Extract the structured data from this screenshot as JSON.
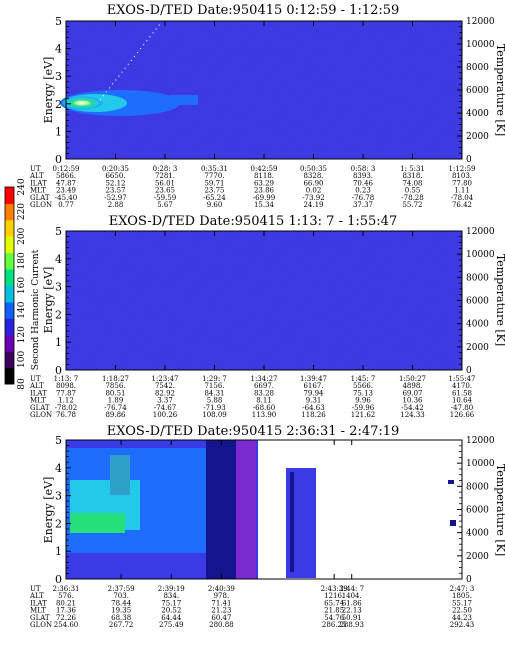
{
  "colors": {
    "plot_bg": "#3a3ae6",
    "hatch": "#6a2a9a",
    "bright_blue": "#1f6dff",
    "cyan": "#22c9e8",
    "teal": "#2fa0c8",
    "green": "#25e07a",
    "light_green": "#b8ffb0",
    "white": "#ffffff",
    "navy": "#14148c",
    "purple": "#7a2bd0"
  },
  "colorbar": {
    "label": "Second Harmonic Current",
    "ticks": [
      "80",
      "100",
      "120",
      "140",
      "160",
      "180",
      "200",
      "220",
      "240"
    ],
    "colors": [
      "#000000",
      "#3a0060",
      "#6a00b0",
      "#2a20e0",
      "#1060ff",
      "#00c0e0",
      "#00e080",
      "#60ff40",
      "#e0ff00",
      "#ffd000",
      "#ff8000",
      "#ff0000"
    ]
  },
  "chart_data": [
    {
      "type": "heatmap",
      "title": "EXOS-D/TED   Date:950415  0:12:59 - 1:12:59",
      "ylabel": "Energy [eV]",
      "y2label": "Temperature [K]",
      "ylim": [
        0,
        5
      ],
      "y2lim": [
        0,
        12000
      ],
      "y_ticks": [
        "0",
        "1",
        "2",
        "3",
        "4",
        "5"
      ],
      "y2_ticks": [
        "0",
        "2000",
        "4000",
        "6000",
        "8000",
        "10000",
        "12000"
      ],
      "table": {
        "labels": [
          "UT",
          "ALT",
          "ILAT",
          "MLT",
          "GLAT",
          "GLON"
        ],
        "columns": [
          [
            "0:12:59",
            "5866.",
            "47.87",
            "23.49",
            "-45.40",
            "0.77"
          ],
          [
            "0:20:35",
            "6650.",
            "52.12",
            "23.57",
            "-52.97",
            "2.88"
          ],
          [
            "0:28: 3",
            "7281.",
            "56.01",
            "23.65",
            "-59.59",
            "5.67"
          ],
          [
            "0:35:31",
            "7770.",
            "59.71",
            "23.75",
            "-65.24",
            "9.60"
          ],
          [
            "0:42:59",
            "8118.",
            "63.29",
            "23.86",
            "-69.99",
            "15.34"
          ],
          [
            "0:50:35",
            "8328.",
            "66.90",
            "0.02",
            "-73.92",
            "24.19"
          ],
          [
            "0:58: 3",
            "8393.",
            "70.46",
            "0.23",
            "-76.78",
            "37.37"
          ],
          [
            "1: 5:31",
            "8318.",
            "74.08",
            "0.55",
            "-78.28",
            "55.72"
          ],
          [
            "1:12:59",
            "8103.",
            "77.80",
            "1.11",
            "-78.04",
            "76.42"
          ]
        ]
      }
    },
    {
      "type": "heatmap",
      "title": "EXOS-D/TED   Date:950415  1:13: 7 - 1:55:47",
      "ylabel": "Energy [eV]",
      "y2label": "Temperature [K]",
      "ylim": [
        0,
        5
      ],
      "y2lim": [
        0,
        12000
      ],
      "y_ticks": [
        "0",
        "1",
        "2",
        "3",
        "4",
        "5"
      ],
      "y2_ticks": [
        "0",
        "2000",
        "4000",
        "6000",
        "8000",
        "10000",
        "12000"
      ],
      "table": {
        "labels": [
          "UT",
          "ALT",
          "ILAT",
          "MLT",
          "GLAT",
          "GLON"
        ],
        "columns": [
          [
            "1:13: 7",
            "8098.",
            "77.87",
            "1.12",
            "-78.02",
            "76.78"
          ],
          [
            "1:18:27",
            "7856.",
            "80.51",
            "1.89",
            "-76.74",
            "89.86"
          ],
          [
            "1:23:47",
            "7542.",
            "82.92",
            "3.37",
            "-74.67",
            "100.26"
          ],
          [
            "1:29: 7",
            "7156.",
            "84.31",
            "5.88",
            "-71.93",
            "108.09"
          ],
          [
            "1:34:27",
            "6697.",
            "83.28",
            "8.11",
            "-68.60",
            "113.90"
          ],
          [
            "1:39:47",
            "6167.",
            "79.94",
            "9.31",
            "-64.63",
            "118.26"
          ],
          [
            "1:45: 7",
            "5566.",
            "75.13",
            "9.96",
            "-59.96",
            "121.62"
          ],
          [
            "1:50:27",
            "4898.",
            "69.07",
            "10.36",
            "-54.42",
            "124.33"
          ],
          [
            "1:55:47",
            "4170.",
            "61.58",
            "10.64",
            "-47.80",
            "126.66"
          ]
        ]
      }
    },
    {
      "type": "heatmap",
      "title": "EXOS-D/TED   Date:950415  2:36:31 - 2:47:19",
      "ylabel": "Energy [eV]",
      "y2label": "Temperature [K]",
      "ylim": [
        0,
        5
      ],
      "y2lim": [
        0,
        12000
      ],
      "y_ticks": [
        "0",
        "1",
        "2",
        "3",
        "4",
        "5"
      ],
      "y2_ticks": [
        "0",
        "2000",
        "4000",
        "6000",
        "8000",
        "10000",
        "12000"
      ],
      "table": {
        "labels": [
          "UT",
          "ALT",
          "ILAT",
          "MLT",
          "GLAT",
          "GLON"
        ],
        "columns": [
          [
            "2:36:31",
            "576.",
            "80.21",
            "17.36",
            "72.26",
            "254.60"
          ],
          [
            "2:37:59",
            "703.",
            "78.44",
            "19.35",
            "68.38",
            "267.72"
          ],
          [
            "2:39:19",
            "834.",
            "75.17",
            "20.52",
            "64.44",
            "275.49"
          ],
          [
            "2:40:39",
            "978.",
            "71.41",
            "21.23",
            "60.47",
            "280.88"
          ],
          [
            "2:43:39",
            "1216.",
            "65.74",
            "21.85",
            "54.76",
            "286.25"
          ],
          [
            "2:44: 7",
            "1404.",
            "61.86",
            "22.13",
            "50.91",
            "288.93"
          ],
          [
            "2:47: 3",
            "1805.",
            "55.17",
            "22.50",
            "44.23",
            "292.43"
          ]
        ]
      }
    }
  ]
}
